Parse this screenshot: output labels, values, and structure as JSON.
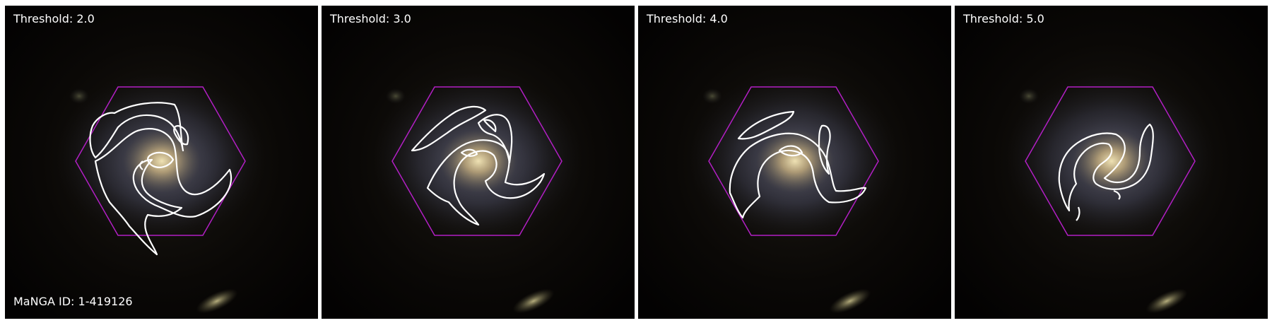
{
  "panels": [
    {
      "threshold_label": "Threshold: 2.0"
    },
    {
      "threshold_label": "Threshold: 3.0"
    },
    {
      "threshold_label": "Threshold: 4.0"
    },
    {
      "threshold_label": "Threshold: 5.0"
    }
  ],
  "galaxy_id_label": "MaNGA ID: 1-419126",
  "colors": {
    "background": "#050403",
    "hexagon": "#b21fc4",
    "contour": "#ffffff",
    "galaxy_core": "#cdbb8f",
    "galaxy_arms": "#6a6f86"
  }
}
